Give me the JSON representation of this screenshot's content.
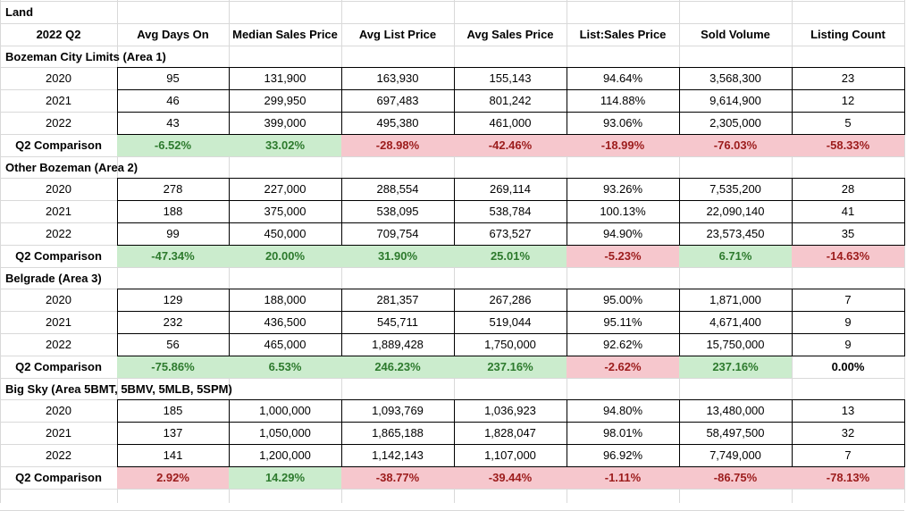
{
  "sheet_title": "Land",
  "header": [
    "2022 Q2",
    "Avg Days On",
    "Median Sales Price",
    "Avg List Price",
    "Avg Sales Price",
    "List:Sales Price",
    "Sold Volume",
    "Listing Count"
  ],
  "colors": {
    "positive_bg": "#cbeccd",
    "positive_text": "#2d7a2d",
    "negative_bg": "#f6c7cd",
    "negative_text": "#9c1c1c"
  },
  "sections": [
    {
      "name": "Bozeman City Limits (Area 1)",
      "rows": [
        [
          "2020",
          "95",
          "131,900",
          "163,930",
          "155,143",
          "94.64%",
          "3,568,300",
          "23"
        ],
        [
          "2021",
          "46",
          "299,950",
          "697,483",
          "801,242",
          "114.88%",
          "9,614,900",
          "12"
        ],
        [
          "2022",
          "43",
          "399,000",
          "495,380",
          "461,000",
          "93.06%",
          "2,305,000",
          "5"
        ]
      ],
      "comparison": {
        "label": "Q2 Comparison",
        "values": [
          "-6.52%",
          "33.02%",
          "-28.98%",
          "-42.46%",
          "-18.99%",
          "-76.03%",
          "-58.33%"
        ],
        "status": [
          "pos",
          "pos",
          "neg",
          "neg",
          "neg",
          "neg",
          "neg"
        ]
      }
    },
    {
      "name": "Other Bozeman (Area 2)",
      "rows": [
        [
          "2020",
          "278",
          "227,000",
          "288,554",
          "269,114",
          "93.26%",
          "7,535,200",
          "28"
        ],
        [
          "2021",
          "188",
          "375,000",
          "538,095",
          "538,784",
          "100.13%",
          "22,090,140",
          "41"
        ],
        [
          "2022",
          "99",
          "450,000",
          "709,754",
          "673,527",
          "94.90%",
          "23,573,450",
          "35"
        ]
      ],
      "comparison": {
        "label": "Q2 Comparison",
        "values": [
          "-47.34%",
          "20.00%",
          "31.90%",
          "25.01%",
          "-5.23%",
          "6.71%",
          "-14.63%"
        ],
        "status": [
          "pos",
          "pos",
          "pos",
          "pos",
          "neg",
          "pos",
          "neg"
        ]
      }
    },
    {
      "name": "Belgrade (Area 3)",
      "rows": [
        [
          "2020",
          "129",
          "188,000",
          "281,357",
          "267,286",
          "95.00%",
          "1,871,000",
          "7"
        ],
        [
          "2021",
          "232",
          "436,500",
          "545,711",
          "519,044",
          "95.11%",
          "4,671,400",
          "9"
        ],
        [
          "2022",
          "56",
          "465,000",
          "1,889,428",
          "1,750,000",
          "92.62%",
          "15,750,000",
          "9"
        ]
      ],
      "comparison": {
        "label": "Q2 Comparison",
        "values": [
          "-75.86%",
          "6.53%",
          "246.23%",
          "237.16%",
          "-2.62%",
          "237.16%",
          "0.00%"
        ],
        "status": [
          "pos",
          "pos",
          "pos",
          "pos",
          "neg",
          "pos",
          "none"
        ]
      }
    },
    {
      "name": "Big Sky (Area 5BMT, 5BMV, 5MLB, 5SPM)",
      "rows": [
        [
          "2020",
          "185",
          "1,000,000",
          "1,093,769",
          "1,036,923",
          "94.80%",
          "13,480,000",
          "13"
        ],
        [
          "2021",
          "137",
          "1,050,000",
          "1,865,188",
          "1,828,047",
          "98.01%",
          "58,497,500",
          "32"
        ],
        [
          "2022",
          "141",
          "1,200,000",
          "1,142,143",
          "1,107,000",
          "96.92%",
          "7,749,000",
          "7"
        ]
      ],
      "comparison": {
        "label": "Q2 Comparison",
        "values": [
          "2.92%",
          "14.29%",
          "-38.77%",
          "-39.44%",
          "-1.11%",
          "-86.75%",
          "-78.13%"
        ],
        "status": [
          "neg",
          "pos",
          "neg",
          "neg",
          "neg",
          "neg",
          "neg"
        ]
      }
    }
  ]
}
